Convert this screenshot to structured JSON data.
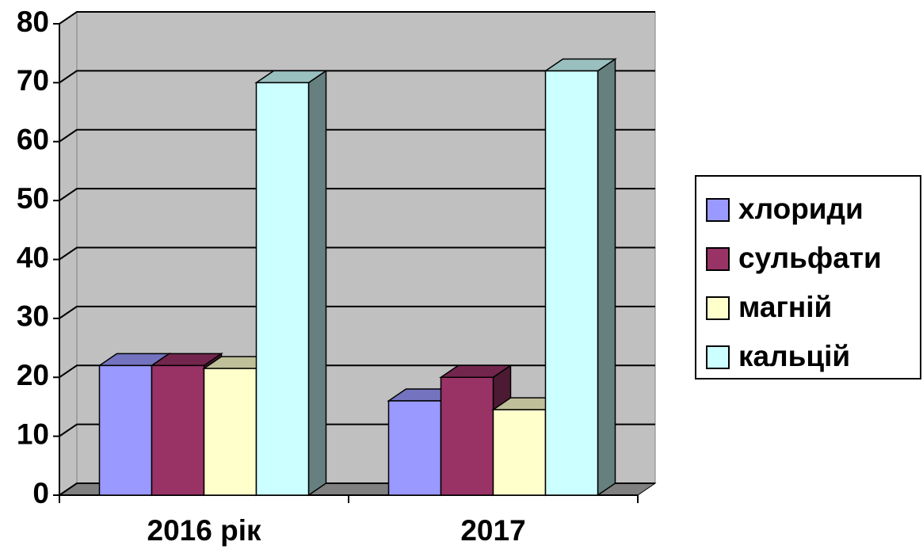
{
  "chart_data": {
    "type": "bar3d",
    "categories": [
      "2016 рік",
      "2017"
    ],
    "series": [
      {
        "name": "хлориди",
        "color": "#9999ff",
        "values": [
          22,
          16
        ]
      },
      {
        "name": "сульфати",
        "color": "#993366",
        "values": [
          22,
          20
        ]
      },
      {
        "name": "магній",
        "color": "#ffffcc",
        "values": [
          21.5,
          14.5
        ]
      },
      {
        "name": "кальцій",
        "color": "#ccffff",
        "values": [
          70,
          72
        ]
      }
    ],
    "ylim": [
      0,
      80
    ],
    "yticks": [
      0,
      10,
      20,
      30,
      40,
      50,
      60,
      70,
      80
    ],
    "grid": true,
    "legend": "right"
  }
}
